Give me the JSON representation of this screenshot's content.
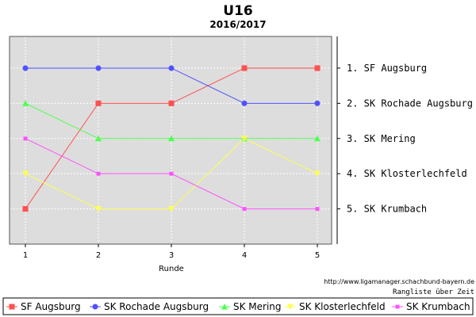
{
  "chart_data": {
    "type": "line",
    "title": "U16",
    "subtitle": "2016/2017",
    "xlabel": "Runde",
    "ylabel": "",
    "x": [
      1,
      2,
      3,
      4,
      5
    ],
    "ylim": [
      0.1,
      6.0
    ],
    "y_inverted": true,
    "grid": true,
    "legend": "bottom",
    "right_axis_labels": [
      "1. SF Augsburg",
      "2. SK Rochade Augsburg",
      "3. SK Mering",
      "4. SK Klosterlechfeld",
      "5. SK Krumbach"
    ],
    "series": [
      {
        "name": "SF Augsburg",
        "values": [
          5,
          2,
          2,
          1,
          1
        ],
        "color": "#ff5050",
        "marker": "square"
      },
      {
        "name": "SK Rochade Augsburg",
        "values": [
          1,
          1,
          1,
          2,
          2
        ],
        "color": "#5050ff",
        "marker": "circle"
      },
      {
        "name": "SK Mering",
        "values": [
          2,
          3,
          3,
          3,
          3
        ],
        "color": "#50ff50",
        "marker": "triangle"
      },
      {
        "name": "SK Klosterlechfeld",
        "values": [
          4,
          5,
          5,
          3,
          4
        ],
        "color": "#ffff50",
        "marker": "triangle-down"
      },
      {
        "name": "SK Krumbach",
        "values": [
          3,
          4,
          4,
          5,
          5
        ],
        "color": "#ff50ff",
        "marker": "square-small"
      }
    ]
  },
  "footer": {
    "url": "http://www.ligamanager.schachbund-bayern.de",
    "credit": "Rangliste über Zeit"
  },
  "colors": {
    "plot_bg": "#dddddd",
    "grid": "#ffffff"
  }
}
